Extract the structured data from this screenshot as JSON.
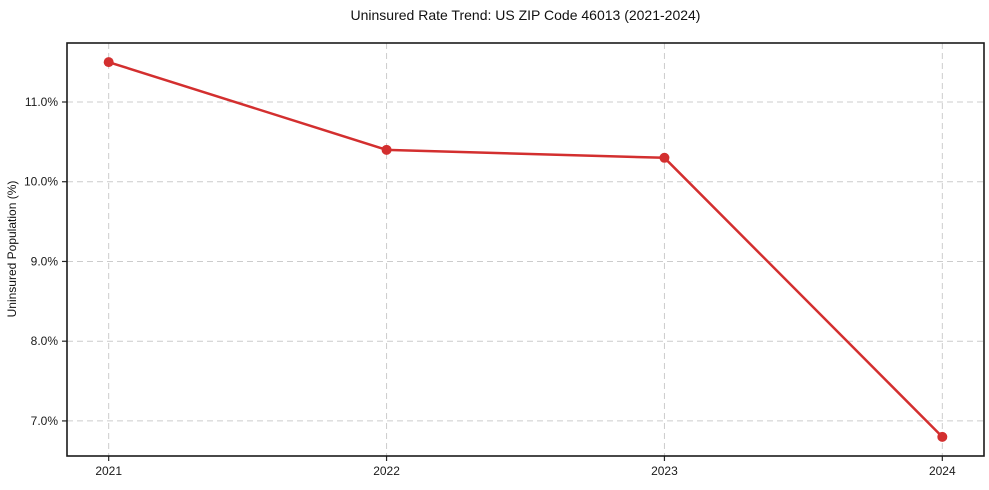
{
  "figure": {
    "background": "#ffffff"
  },
  "chart_data": {
    "type": "line",
    "title": "Uninsured Rate Trend: US ZIP Code 46013 (2021-2024)",
    "ylabel": "Uninsured Population (%)",
    "xlabel": "",
    "x": [
      2021,
      2022,
      2023,
      2024
    ],
    "xtick_labels": [
      "2021",
      "2022",
      "2023",
      "2024"
    ],
    "values": [
      11.5,
      10.4,
      10.3,
      6.8
    ],
    "yticks": [
      7.0,
      8.0,
      9.0,
      10.0,
      11.0
    ],
    "ytick_labels": [
      "7.0%",
      "8.0%",
      "9.0%",
      "10.0%",
      "11.0%"
    ],
    "ylim": [
      6.56,
      11.74
    ],
    "xlim": [
      2020.85,
      2024.15
    ],
    "grid": true,
    "grid_style": "dashed",
    "grid_color": "#cccccc",
    "line_color": "#d32f2f",
    "marker": "circle",
    "marker_radius": 5,
    "legend": "none"
  }
}
